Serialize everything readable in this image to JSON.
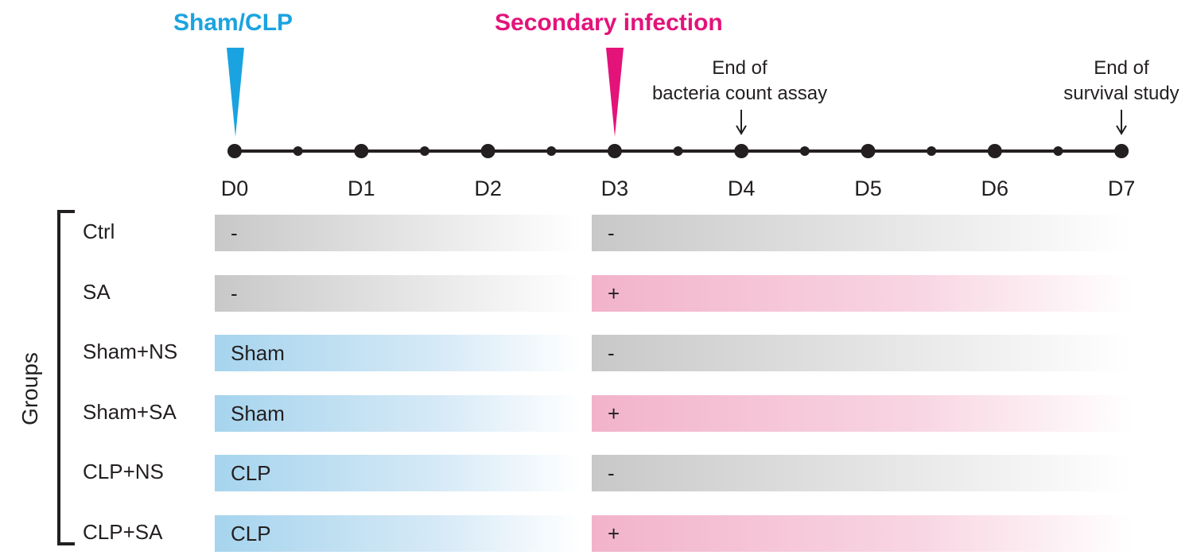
{
  "markers": {
    "first": {
      "label": "Sham/CLP",
      "color": "#1aa3e0"
    },
    "second": {
      "label": "Secondary infection",
      "color": "#e3137a"
    }
  },
  "endpoints": {
    "bacteria": {
      "line1": "End of",
      "line2": "bacteria count assay"
    },
    "survival": {
      "line1": "End of",
      "line2": "survival study"
    }
  },
  "days": [
    "D0",
    "D1",
    "D2",
    "D3",
    "D4",
    "D5",
    "D6",
    "D7"
  ],
  "groups_title": "Groups",
  "groups": [
    {
      "name": "Ctrl",
      "first": "-",
      "first_type": "gray",
      "second": "-",
      "second_type": "gray"
    },
    {
      "name": "SA",
      "first": "-",
      "first_type": "gray",
      "second": "+",
      "second_type": "pink"
    },
    {
      "name": "Sham+NS",
      "first": "Sham",
      "first_type": "blue",
      "second": "-",
      "second_type": "gray"
    },
    {
      "name": "Sham+SA",
      "first": "Sham",
      "first_type": "blue",
      "second": "+",
      "second_type": "pink"
    },
    {
      "name": "CLP+NS",
      "first": "CLP",
      "first_type": "blue",
      "second": "-",
      "second_type": "gray"
    },
    {
      "name": "CLP+SA",
      "first": "CLP",
      "first_type": "blue",
      "second": "+",
      "second_type": "pink"
    }
  ],
  "colors": {
    "line": "#231f20"
  }
}
